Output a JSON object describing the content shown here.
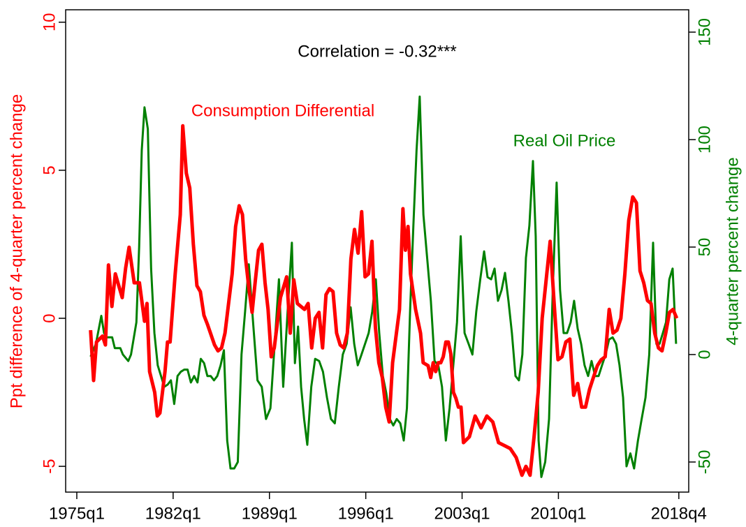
{
  "chart_data": {
    "type": "line",
    "annotations": [
      {
        "text": "Correlation = -0.32***",
        "color": "#000000"
      },
      {
        "text": "Consumption Differential",
        "color": "#ff0000"
      },
      {
        "text": "Real Oil Price",
        "color": "#008000"
      }
    ],
    "ylabel": "Ppt difference of 4-quarter percent change",
    "y2label": "4-quarter percent change",
    "xlim": [
      1974.19,
      2019.47
    ],
    "xticks": [
      {
        "value": 1975,
        "label": "1975q1"
      },
      {
        "value": 1982,
        "label": "1982q1"
      },
      {
        "value": 1989,
        "label": "1989q1"
      },
      {
        "value": 1996,
        "label": "1996q1"
      },
      {
        "value": 2003,
        "label": "2003q1"
      },
      {
        "value": 2010,
        "label": "2010q1"
      },
      {
        "value": 2018.75,
        "label": "2018q4"
      }
    ],
    "ylim": [
      -5.87,
      10.42
    ],
    "yticks": [
      -5,
      0,
      5,
      10
    ],
    "y2lim": [
      -64,
      160.4
    ],
    "y2ticks": [
      -50,
      0,
      50,
      100,
      150
    ],
    "series": [
      {
        "name": "Consumption Differential",
        "color": "#ff0000",
        "axis": "y",
        "x": [
          1976,
          1976.22,
          1976.43,
          1976.87,
          1977.08,
          1977.3,
          1977.55,
          1977.8,
          1978.3,
          1978.55,
          1978.8,
          1979.17,
          1979.55,
          1979.92,
          1980.1,
          1980.29,
          1980.66,
          1980.85,
          1981.04,
          1981.41,
          1981.59,
          1981.78,
          1982.15,
          1982.52,
          1982.7,
          1982.96,
          1983.21,
          1983.47,
          1983.73,
          1983.98,
          1984.24,
          1984.49,
          1985.01,
          1985.26,
          1985.52,
          1985.77,
          1986.29,
          1986.54,
          1986.8,
          1987.04,
          1987.27,
          1987.51,
          1987.74,
          1987.98,
          1988.21,
          1988.45,
          1988.68,
          1988.9,
          1989.13,
          1989.35,
          1989.8,
          1990.25,
          1990.51,
          1990.77,
          1991.03,
          1991.29,
          1991.55,
          1991.81,
          1992.07,
          1992.33,
          1992.6,
          1992.86,
          1993.11,
          1993.36,
          1993.62,
          1993.88,
          1994.14,
          1994.4,
          1994.66,
          1994.92,
          1995.18,
          1995.44,
          1995.7,
          1995.95,
          1996.2,
          1996.45,
          1996.7,
          1996.95,
          1997.2,
          1997.45,
          1997.7,
          1997.95,
          1998.45,
          1998.7,
          1998.88,
          1999.07,
          1999.25,
          1999.62,
          1999.98,
          2000.17,
          2000.53,
          2000.72,
          2000.9,
          2001.08,
          2001.27,
          2001.45,
          2001.63,
          2001.82,
          2002.0,
          2002.18,
          2002.37,
          2002.55,
          2002.73,
          2002.92,
          2003.1,
          2003.53,
          2003.95,
          2004.38,
          2004.8,
          2005.23,
          2005.65,
          2006.08,
          2006.5,
          2006.93,
          2007.35,
          2007.64,
          2007.94,
          2008.23,
          2008.53,
          2008.82,
          2009.4,
          2009.69,
          2009.97,
          2010.26,
          2010.54,
          2010.83,
          2011.11,
          2011.4,
          2011.69,
          2011.97,
          2012.26,
          2012.54,
          2012.83,
          2013.11,
          2013.4,
          2013.69,
          2013.97,
          2014.26,
          2014.54,
          2014.83,
          2015.11,
          2015.4,
          2015.67,
          2015.93,
          2016.2,
          2016.47,
          2016.73,
          2017.0,
          2017.27,
          2017.53,
          2017.8,
          2018.07,
          2018.33,
          2018.6
        ],
        "values": [
          -0.4,
          -2.1,
          -0.8,
          -0.6,
          -0.9,
          1.8,
          0.4,
          1.5,
          0.7,
          1.7,
          2.4,
          1.2,
          1.2,
          -0.1,
          0.5,
          -1.8,
          -2.5,
          -3.3,
          -3.2,
          -1.8,
          -0.8,
          -0.8,
          1.5,
          3.5,
          6.5,
          4.9,
          4.4,
          2.5,
          1.1,
          0.9,
          0.1,
          -0.2,
          -0.9,
          -1.1,
          -1.0,
          -0.5,
          1.5,
          3.1,
          3.8,
          3.5,
          2.0,
          1.0,
          0.2,
          1.3,
          2.3,
          2.5,
          1.2,
          0.3,
          -1.3,
          -1.0,
          0.7,
          1.4,
          -0.5,
          1.3,
          0.5,
          0.4,
          0.3,
          0.5,
          -1.0,
          0.0,
          0.2,
          -1.0,
          0.8,
          1.0,
          0.9,
          -0.5,
          -0.9,
          -1.0,
          -0.5,
          2.0,
          3.0,
          2.2,
          3.6,
          1.4,
          1.5,
          2.6,
          -0.3,
          -1.5,
          -2.0,
          -3.0,
          -3.5,
          -1.5,
          0.3,
          3.7,
          2.3,
          3.1,
          1.5,
          0.3,
          -0.5,
          -1.5,
          -1.6,
          -2.0,
          -1.5,
          -1.8,
          -1.5,
          -1.5,
          -1.3,
          -0.8,
          -0.8,
          -1.2,
          -2.5,
          -2.7,
          -3.0,
          -3.0,
          -4.2,
          -4.0,
          -3.3,
          -3.7,
          -3.3,
          -3.5,
          -4.2,
          -4.3,
          -4.4,
          -4.7,
          -5.3,
          -5.0,
          -5.3,
          -4.0,
          -2.5,
          0.0,
          2.6,
          0.5,
          -1.4,
          -1.3,
          -0.8,
          -0.7,
          -2.6,
          -2.2,
          -3.0,
          -3.0,
          -2.4,
          -2.0,
          -1.6,
          -1.4,
          -1.3,
          0.3,
          -0.5,
          -0.4,
          0.0,
          1.5,
          3.3,
          4.1,
          3.9,
          1.6,
          1.2,
          0.6,
          0.5,
          -0.5,
          -1.0,
          -1.1,
          -0.5,
          0.2,
          0.3,
          0.0
        ]
      },
      {
        "name": "Real Oil Price",
        "color": "#008000",
        "axis": "y2",
        "x": [
          1976,
          1976.39,
          1976.78,
          1976.98,
          1977.18,
          1977.57,
          1977.76,
          1978.16,
          1978.35,
          1978.74,
          1978.94,
          1979.33,
          1979.53,
          1979.72,
          1979.92,
          1980.16,
          1980.4,
          1980.64,
          1980.88,
          1981.36,
          1981.6,
          1981.84,
          1982.08,
          1982.32,
          1982.56,
          1982.81,
          1983.05,
          1983.29,
          1983.53,
          1983.77,
          1984.01,
          1984.25,
          1984.49,
          1984.73,
          1984.97,
          1985.21,
          1985.45,
          1985.69,
          1985.93,
          1986.17,
          1986.44,
          1986.7,
          1986.97,
          1987.23,
          1987.5,
          1987.81,
          1988.13,
          1988.44,
          1988.75,
          1989.07,
          1989.38,
          1989.69,
          1990.0,
          1990.32,
          1990.63,
          1990.85,
          1991.08,
          1991.3,
          1991.52,
          1991.75,
          1992.04,
          1992.32,
          1992.61,
          1992.89,
          1993.18,
          1993.47,
          1993.75,
          1994.04,
          1994.33,
          1994.61,
          1994.9,
          1995.16,
          1995.42,
          1995.69,
          1995.95,
          1996.21,
          1996.47,
          1996.73,
          1996.98,
          1997.24,
          1997.49,
          1997.75,
          1998.0,
          1998.25,
          1998.51,
          1998.76,
          1998.99,
          1999.22,
          1999.46,
          1999.69,
          1999.92,
          2000.19,
          2000.46,
          2000.73,
          2001.0,
          2001.27,
          2001.54,
          2001.82,
          2002.09,
          2002.36,
          2002.63,
          2002.9,
          2003.18,
          2003.47,
          2003.75,
          2004.03,
          2004.32,
          2004.6,
          2004.85,
          2005.11,
          2005.36,
          2005.61,
          2005.87,
          2006.12,
          2006.37,
          2006.62,
          2006.88,
          2007.13,
          2007.38,
          2007.64,
          2007.89,
          2008.15,
          2008.35,
          2008.56,
          2008.76,
          2009.04,
          2009.32,
          2009.59,
          2009.87,
          2010.12,
          2010.38,
          2010.63,
          2010.89,
          2011.14,
          2011.4,
          2011.65,
          2011.9,
          2012.16,
          2012.41,
          2012.67,
          2012.92,
          2013.17,
          2013.43,
          2013.68,
          2013.94,
          2014.19,
          2014.44,
          2014.7,
          2014.95,
          2015.23,
          2015.5,
          2015.78,
          2016.05,
          2016.33,
          2016.6,
          2016.88,
          2017.12,
          2017.35,
          2017.59,
          2017.82,
          2018.06,
          2018.3,
          2018.55
        ],
        "values": [
          -1,
          5,
          18,
          10,
          8,
          8,
          3,
          3,
          0,
          -3,
          0,
          15,
          50,
          95,
          115,
          105,
          40,
          10,
          -5,
          -15,
          -14,
          -12,
          -23,
          -10,
          -8,
          -7,
          -7,
          -13,
          -10,
          -13,
          -2,
          -4,
          -10,
          -10,
          -12,
          -10,
          -5,
          2,
          -40,
          -53,
          -53,
          -50,
          0,
          20,
          42,
          15,
          -12,
          -15,
          -30,
          -25,
          5,
          35,
          -15,
          20,
          52,
          -4,
          13,
          -15,
          -30,
          -42,
          -15,
          -2,
          -3,
          -8,
          -20,
          -30,
          -32,
          -15,
          0,
          5,
          22,
          5,
          -5,
          0,
          5,
          10,
          20,
          35,
          10,
          -10,
          -18,
          -30,
          -33,
          -30,
          -32,
          -40,
          -25,
          20,
          60,
          95,
          120,
          65,
          45,
          25,
          -3,
          -5,
          -15,
          -40,
          -25,
          -5,
          15,
          55,
          10,
          5,
          0,
          20,
          35,
          48,
          36,
          35,
          40,
          25,
          30,
          38,
          25,
          10,
          -10,
          -12,
          0,
          45,
          60,
          90,
          55,
          -40,
          -57,
          -50,
          -30,
          30,
          80,
          30,
          10,
          10,
          15,
          25,
          12,
          5,
          -5,
          -10,
          -3,
          -10,
          -10,
          -5,
          0,
          7,
          8,
          5,
          -5,
          -20,
          -52,
          -46,
          -53,
          -40,
          -30,
          -20,
          0,
          52,
          5,
          5,
          10,
          15,
          35,
          40,
          5
        ]
      }
    ]
  }
}
